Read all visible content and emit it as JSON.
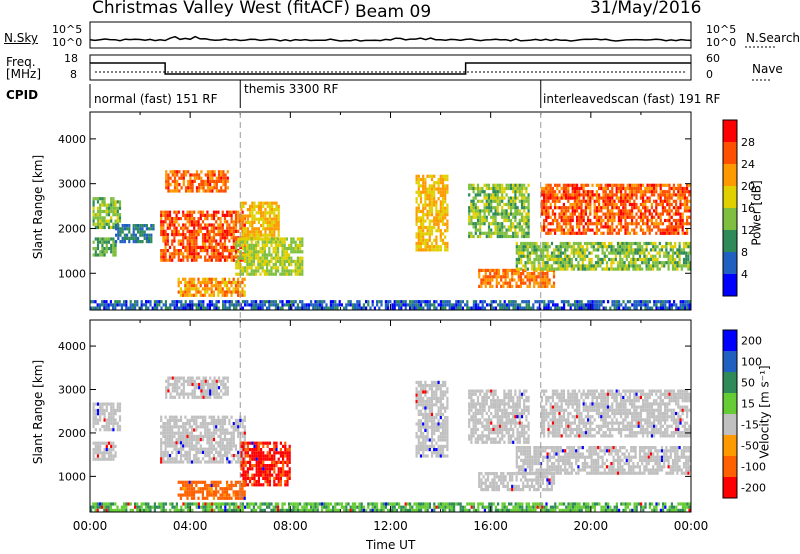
{
  "header": {
    "station": "Christmas Valley West (fitACF)",
    "beam": "Beam 09",
    "date": "31/May/2016"
  },
  "labels": {
    "nsky": "N.Sky",
    "nsearch": "N.Search",
    "freq_line1": "Freq.",
    "freq_line2": "[MHz]",
    "nave": "Nave",
    "cpid": "CPID",
    "nsky_ticks": [
      "10^5",
      "10^0"
    ],
    "nsearch_ticks": [
      "10^5",
      "10^0"
    ],
    "freq_ticks": [
      "18",
      "8"
    ],
    "nave_ticks": [
      "60",
      "0"
    ]
  },
  "cpid_segments": [
    {
      "label": "normal (fast) 151 RF",
      "start_hour": 0,
      "end_hour": 6
    },
    {
      "label": "themis 3300 RF",
      "start_hour": 6,
      "end_hour": 18
    },
    {
      "label": "interleavedscan (fast) 191 RF",
      "start_hour": 18,
      "end_hour": 24
    }
  ],
  "frequency_segments": [
    {
      "start_hour": 0,
      "end_hour": 3,
      "level": "high"
    },
    {
      "start_hour": 3,
      "end_hour": 15,
      "level": "low"
    },
    {
      "start_hour": 15,
      "end_hour": 24,
      "level": "high"
    }
  ],
  "chart_data": [
    {
      "type": "heatmap",
      "name": "power",
      "xlabel": "",
      "ylabel": "Slant Range [km]",
      "xlim": [
        0,
        24
      ],
      "ylim": [
        180,
        4600
      ],
      "yticks": [
        "1000",
        "2000",
        "3000",
        "4000"
      ],
      "colorbar": {
        "label": "Power [dB]",
        "ticks": [
          "4",
          "8",
          "12",
          "16",
          "20",
          "24",
          "28"
        ],
        "range": [
          0,
          32
        ],
        "colors": [
          "#0000ff",
          "#2060c0",
          "#2e8b57",
          "#7fbf3f",
          "#e0d000",
          "#ff9900",
          "#ff5000",
          "#ff0000"
        ]
      },
      "regions": [
        {
          "t0": 0.1,
          "t1": 1.2,
          "r0": 2050,
          "r1": 2700,
          "value": 14
        },
        {
          "t0": 0.1,
          "t1": 1.0,
          "r0": 1400,
          "r1": 1800,
          "value": 12
        },
        {
          "t0": 1.0,
          "t1": 2.5,
          "r0": 1700,
          "r1": 2100,
          "value": 8
        },
        {
          "t0": 3.0,
          "t1": 5.5,
          "r0": 2800,
          "r1": 3300,
          "value": 25
        },
        {
          "t0": 2.8,
          "t1": 6.2,
          "r0": 1300,
          "r1": 2400,
          "value": 26
        },
        {
          "t0": 6.0,
          "t1": 7.5,
          "r0": 1800,
          "r1": 2600,
          "value": 20
        },
        {
          "t0": 5.8,
          "t1": 8.5,
          "r0": 1000,
          "r1": 1800,
          "value": 16
        },
        {
          "t0": 3.5,
          "t1": 6.2,
          "r0": 500,
          "r1": 900,
          "value": 22
        },
        {
          "t0": 13.0,
          "t1": 14.3,
          "r0": 1500,
          "r1": 3200,
          "value": 20
        },
        {
          "t0": 15.1,
          "t1": 17.5,
          "r0": 1800,
          "r1": 3000,
          "value": 14
        },
        {
          "t0": 15.5,
          "t1": 18.5,
          "r0": 700,
          "r1": 1100,
          "value": 24
        },
        {
          "t0": 18.0,
          "t1": 24.0,
          "r0": 1900,
          "r1": 3000,
          "value": 26
        },
        {
          "t0": 17.0,
          "t1": 24.0,
          "r0": 1100,
          "r1": 1700,
          "value": 14
        },
        {
          "t0": 0.0,
          "t1": 24.0,
          "r0": 200,
          "r1": 400,
          "value": 6
        }
      ]
    },
    {
      "type": "heatmap",
      "name": "velocity",
      "xlabel": "Time UT",
      "ylabel": "Slant Range [km]",
      "xlim": [
        0,
        24
      ],
      "ylim": [
        180,
        4600
      ],
      "xticks": [
        "00:00",
        "04:00",
        "08:00",
        "12:00",
        "16:00",
        "20:00",
        "00:00"
      ],
      "yticks": [
        "1000",
        "2000",
        "3000",
        "4000"
      ],
      "colorbar": {
        "label": "Velocity [m s⁻¹]",
        "ticks": [
          "200",
          "100",
          "50",
          "15",
          "-15",
          "-50",
          "-100",
          "-200"
        ],
        "colors": [
          "#0000ff",
          "#2060c0",
          "#2e8b57",
          "#66cc33",
          "#c0c0c0",
          "#ff9900",
          "#ff6000",
          "#ff0000"
        ]
      },
      "regions": [
        {
          "t0": 0.1,
          "t1": 1.2,
          "r0": 2050,
          "r1": 2700,
          "value": 0
        },
        {
          "t0": 0.1,
          "t1": 1.0,
          "r0": 1400,
          "r1": 1800,
          "value": 0
        },
        {
          "t0": 3.0,
          "t1": 5.5,
          "r0": 2800,
          "r1": 3300,
          "value": 0
        },
        {
          "t0": 2.8,
          "t1": 6.2,
          "r0": 1300,
          "r1": 2400,
          "value": 0
        },
        {
          "t0": 6.0,
          "t1": 8.0,
          "r0": 800,
          "r1": 1800,
          "value": -80
        },
        {
          "t0": 3.5,
          "t1": 6.2,
          "r0": 500,
          "r1": 900,
          "value": -40
        },
        {
          "t0": 13.0,
          "t1": 14.3,
          "r0": 1500,
          "r1": 3200,
          "value": 0
        },
        {
          "t0": 15.1,
          "t1": 17.5,
          "r0": 1800,
          "r1": 3000,
          "value": 0
        },
        {
          "t0": 15.5,
          "t1": 18.5,
          "r0": 700,
          "r1": 1100,
          "value": 0
        },
        {
          "t0": 18.0,
          "t1": 24.0,
          "r0": 1900,
          "r1": 3000,
          "value": 0
        },
        {
          "t0": 17.0,
          "t1": 24.0,
          "r0": 1100,
          "r1": 1700,
          "value": 0
        },
        {
          "t0": 0.0,
          "t1": 24.0,
          "r0": 200,
          "r1": 400,
          "value": 30
        }
      ]
    }
  ]
}
